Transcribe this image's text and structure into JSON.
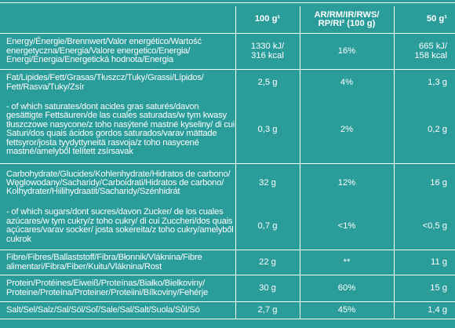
{
  "header": {
    "col_100g": "100 g¹",
    "col_ri_line1": "AR/RM/IR/RWS/",
    "col_ri_line2": "RP/RI² (100 g)",
    "col_50g": "50 g¹"
  },
  "rows": [
    {
      "name": "Energy/Énergie/Brennwert/Valor energético/Wartość energetyczna/Energia/Valore energetico/Energia/ Energi/Energia/Energetická hodnota/Energia",
      "v100": "1330 kJ/\n316 kcal",
      "ri": "16%",
      "v50": "665 kJ/\n158 kcal"
    },
    {
      "name": "Fat/Lipides/Fett/Grasas/Tłuszcz/Tuky/Grassi/Lípidos/ Fett/Rasva/Tuky/Zsír",
      "v100": "2,5 g",
      "ri": "4%",
      "v50": "1,3 g"
    },
    {
      "name": " - of which saturates/dont acides gras saturés/davon gesättigte Fettsäuren/de las cuales saturadas/w tym kwasy tłuszczowe nasycone/z toho nasýtené mastné kyseliny/ di cui Saturi/dos quais ácidos gordos saturados/varav mättade fettsyror/josta tyydyttyneitä rasvoja/z toho nasycené mastné/amelyből telített zsírsavak",
      "v100": "0,3 g",
      "ri": "2%",
      "v50": "0,2 g"
    },
    {
      "name": "Carbohydrate/Glucides/Kohlenhydrate/Hidratos de carbono/ Węglowodany/Sacharidy/Carboidrati/Hidratos de carbono/ Kolhydrater/Hiilihydraatit/Sacharidy/Szénhidrát",
      "v100": "32 g",
      "ri": "12%",
      "v50": "16 g"
    },
    {
      "name": " - of which sugars/dont sucres/davon Zucker/ de los cuales azúcares/w tym cukry/z toho cukry/ di cui Zuccheri/dos quais açúcares/varav socker/ josta sokereita/z toho cukry/amelyből cukrok",
      "v100": "0,7 g",
      "ri": "<1%",
      "v50": "<0,5 g"
    },
    {
      "name": "Fibre/Fibres/Ballaststoff/Fibra/Błonnik/Vláknina/Fibre alimentari/Fibra/Fiber/Kuitu/Vláknina/Rost",
      "v100": "22 g",
      "ri": "**",
      "v50": "11 g"
    },
    {
      "name": "Protein/Protéines/Eiweiß/Proteínas/Białko/Bielkoviny/ Proteine/Proteína/Proteiner/Proteiini/Bílkoviny/Fehérje",
      "v100": "30 g",
      "ri": "60%",
      "v50": "15 g"
    },
    {
      "name": "Salt/Sel/Salz/Sal/Sól/Soľ/Sale/Sal/Salt/Suola/Sůl/Só",
      "v100": "2,7 g",
      "ri": "45%",
      "v50": "1,4 g"
    }
  ],
  "colors": {
    "background": "#2a9c99",
    "text": "#ffffff",
    "rule": "#ffffff"
  }
}
